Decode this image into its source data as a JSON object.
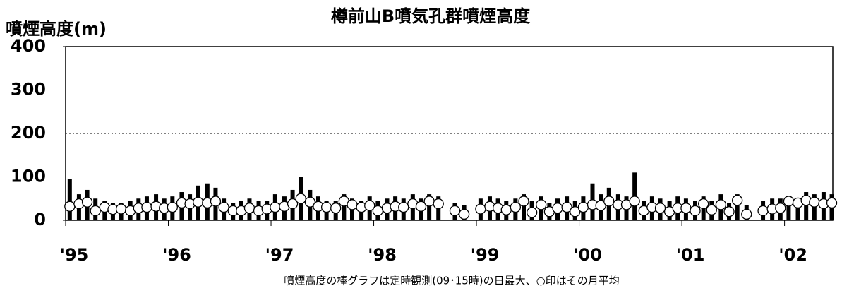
{
  "chart_data": {
    "type": "bar-circle",
    "title": "樽前山B噴気孔群噴煙高度",
    "y_label": "噴煙高度(m)",
    "note": "噴煙高度の棒グラフは定時観測(09･15時)の日最大、○印はその月平均",
    "xlim": [
      1995,
      2002.47
    ],
    "xticks": [
      {
        "value": 1995,
        "label": "'95"
      },
      {
        "value": 1996,
        "label": "'96"
      },
      {
        "value": 1997,
        "label": "'97"
      },
      {
        "value": 1998,
        "label": "'98"
      },
      {
        "value": 1999,
        "label": "'99"
      },
      {
        "value": 2000,
        "label": "'00"
      },
      {
        "value": 2001,
        "label": "'01"
      },
      {
        "value": 2002,
        "label": "'02"
      }
    ],
    "ylim": [
      0,
      400
    ],
    "yticks": [
      0,
      100,
      200,
      300,
      400
    ],
    "grid": true,
    "color": "#000000",
    "x": [
      1995.04,
      1995.13,
      1995.21,
      1995.29,
      1995.38,
      1995.46,
      1995.54,
      1995.63,
      1995.71,
      1995.79,
      1995.88,
      1995.96,
      1996.04,
      1996.13,
      1996.21,
      1996.29,
      1996.38,
      1996.46,
      1996.54,
      1996.63,
      1996.71,
      1996.79,
      1996.88,
      1996.96,
      1997.04,
      1997.13,
      1997.21,
      1997.29,
      1997.38,
      1997.46,
      1997.54,
      1997.63,
      1997.71,
      1997.79,
      1997.88,
      1997.96,
      1998.04,
      1998.13,
      1998.21,
      1998.29,
      1998.38,
      1998.46,
      1998.54,
      1998.63,
      1998.71,
      1998.79,
      1998.88,
      1998.96,
      1999.04,
      1999.13,
      1999.21,
      1999.29,
      1999.38,
      1999.46,
      1999.54,
      1999.63,
      1999.71,
      1999.79,
      1999.88,
      1999.96,
      2000.04,
      2000.13,
      2000.21,
      2000.29,
      2000.38,
      2000.46,
      2000.54,
      2000.63,
      2000.71,
      2000.79,
      2000.88,
      2000.96,
      2001.04,
      2001.13,
      2001.21,
      2001.29,
      2001.38,
      2001.46,
      2001.54,
      2001.63,
      2001.71,
      2001.79,
      2001.88,
      2001.96,
      2002.04,
      2002.13,
      2002.21,
      2002.29,
      2002.38,
      2002.46
    ],
    "bars": [
      95,
      60,
      70,
      50,
      45,
      40,
      40,
      45,
      50,
      55,
      60,
      50,
      55,
      65,
      60,
      80,
      85,
      75,
      50,
      40,
      45,
      50,
      45,
      45,
      60,
      55,
      70,
      100,
      70,
      55,
      45,
      45,
      60,
      50,
      45,
      55,
      45,
      50,
      55,
      50,
      60,
      50,
      60,
      55,
      null,
      40,
      35,
      null,
      50,
      55,
      50,
      45,
      50,
      60,
      45,
      55,
      40,
      50,
      55,
      45,
      55,
      85,
      60,
      75,
      60,
      55,
      110,
      45,
      55,
      50,
      45,
      55,
      50,
      45,
      55,
      45,
      60,
      40,
      60,
      35,
      null,
      45,
      50,
      50,
      55,
      50,
      65,
      60,
      65,
      60
    ],
    "circles": [
      32,
      38,
      42,
      22,
      30,
      25,
      26,
      22,
      28,
      30,
      32,
      28,
      30,
      40,
      38,
      42,
      40,
      44,
      30,
      22,
      22,
      28,
      22,
      26,
      30,
      32,
      38,
      50,
      42,
      32,
      30,
      28,
      44,
      36,
      30,
      34,
      22,
      28,
      32,
      30,
      38,
      32,
      44,
      38,
      null,
      22,
      14,
      null,
      26,
      32,
      28,
      24,
      30,
      44,
      18,
      36,
      20,
      28,
      30,
      20,
      30,
      36,
      34,
      44,
      36,
      36,
      44,
      22,
      30,
      28,
      20,
      28,
      28,
      22,
      38,
      24,
      36,
      20,
      46,
      14,
      null,
      22,
      26,
      28,
      44,
      40,
      46,
      42,
      38,
      40
    ]
  }
}
